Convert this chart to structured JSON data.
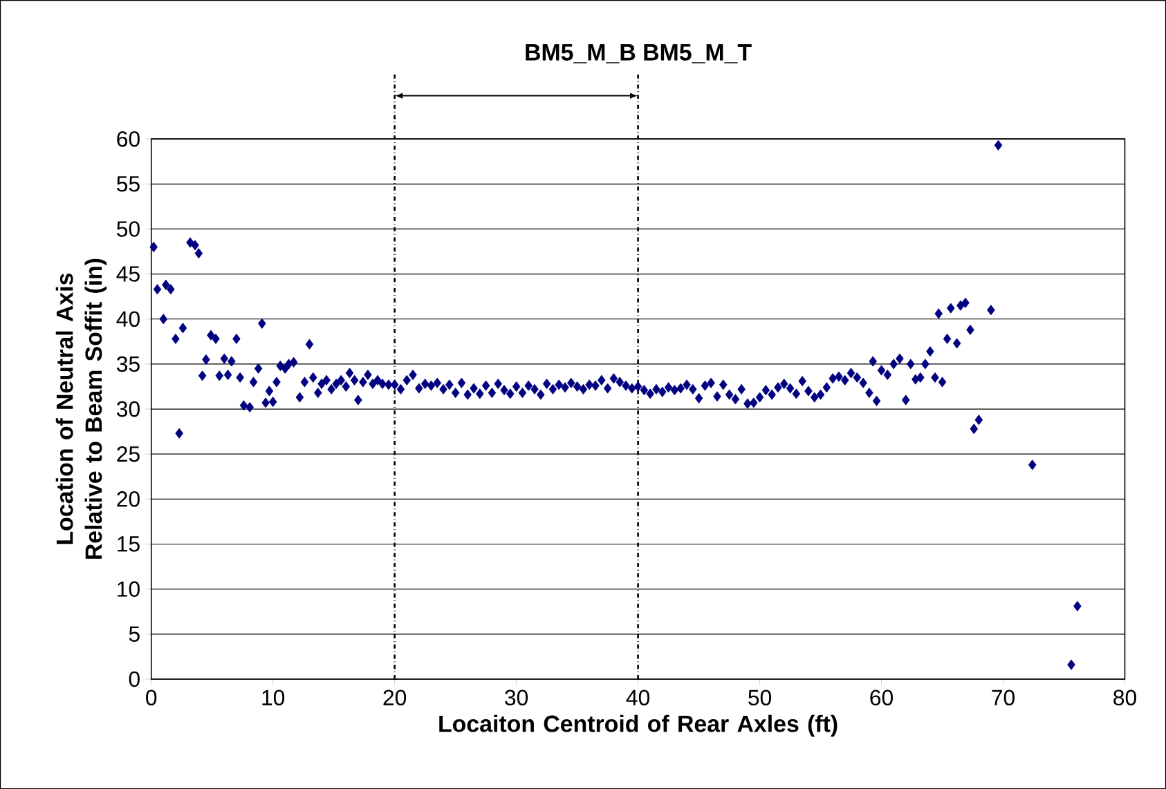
{
  "chart_data": {
    "type": "scatter",
    "title": "BM5_M_B BM5_M_T",
    "xlabel": "Locaiton Centroid of Rear Axles (ft)",
    "ylabel": "Location of Neutral Axis Relative to Beam Soffit (in)",
    "series": [
      {
        "color": "#000080",
        "x": [
          0.2,
          0.5,
          1,
          1.2,
          1.6,
          2,
          2.3,
          2.6,
          3.2,
          3.6,
          3.9,
          4.2,
          4.5,
          4.9,
          5.3,
          5.6,
          6,
          6.3,
          6.6,
          7,
          7.3,
          7.6,
          8.1,
          8.4,
          8.8,
          9.1,
          9.4,
          9.7,
          10,
          10.3,
          10.6,
          11,
          11.3,
          11.7,
          12.2,
          12.6,
          13,
          13.3,
          13.7,
          14,
          14.4,
          14.8,
          15.2,
          15.6,
          16,
          16.3,
          16.7,
          17,
          17.4,
          17.8,
          18.2,
          18.6,
          19,
          19.5,
          20,
          20.5,
          21,
          21.5,
          22,
          22.5,
          23,
          23.5,
          24,
          24.5,
          25,
          25.5,
          26,
          26.5,
          27,
          27.5,
          28,
          28.5,
          29,
          29.5,
          30,
          30.5,
          31,
          31.5,
          32,
          32.5,
          33,
          33.5,
          34,
          34.5,
          35,
          35.5,
          36,
          36.5,
          37,
          37.5,
          38,
          38.5,
          39,
          39.5,
          40,
          40.5,
          41,
          41.5,
          42,
          42.5,
          43,
          43.5,
          44,
          44.5,
          45,
          45.5,
          46,
          46.5,
          47,
          47.5,
          48,
          48.5,
          49,
          49.5,
          50,
          50.5,
          51,
          51.5,
          52,
          52.5,
          53,
          53.5,
          54,
          54.5,
          55,
          55.5,
          56,
          56.5,
          57,
          57.5,
          58,
          58.5,
          59,
          59.3,
          59.6,
          60,
          60.5,
          61,
          61.5,
          62,
          62.4,
          62.8,
          63.2,
          63.6,
          64,
          64.4,
          64.7,
          65,
          65.4,
          65.7,
          66.2,
          66.5,
          66.9,
          67.3,
          67.6,
          68,
          69,
          69.6,
          72.4,
          75.6,
          76.1
        ],
        "values": [
          48,
          43.3,
          40,
          43.8,
          43.3,
          37.8,
          27.3,
          39,
          48.5,
          48.2,
          47.3,
          33.7,
          35.5,
          38.2,
          37.8,
          33.7,
          35.6,
          33.8,
          35.3,
          37.8,
          33.5,
          30.4,
          30.2,
          33,
          34.5,
          39.5,
          30.7,
          32,
          30.8,
          33,
          34.8,
          34.5,
          35,
          35.2,
          31.3,
          33,
          37.2,
          33.5,
          31.8,
          32.8,
          33.2,
          32.2,
          32.8,
          33.2,
          32.5,
          34,
          33.2,
          31,
          33,
          33.8,
          32.8,
          33.2,
          32.8,
          32.7,
          32.7,
          32.2,
          33.2,
          33.8,
          32.3,
          32.8,
          32.6,
          32.9,
          32.2,
          32.7,
          31.8,
          32.9,
          31.6,
          32.3,
          31.7,
          32.6,
          31.8,
          32.8,
          32.1,
          31.7,
          32.5,
          31.8,
          32.6,
          32.2,
          31.6,
          32.8,
          32.2,
          32.7,
          32.4,
          32.9,
          32.5,
          32.2,
          32.7,
          32.6,
          33.2,
          32.3,
          33.4,
          33,
          32.6,
          32.3,
          32.5,
          32.1,
          31.7,
          32.2,
          31.9,
          32.4,
          32.1,
          32.3,
          32.7,
          32.2,
          31.2,
          32.6,
          32.9,
          31.4,
          32.7,
          31.6,
          31.1,
          32.2,
          30.6,
          30.7,
          31.3,
          32.1,
          31.6,
          32.4,
          32.8,
          32.3,
          31.7,
          33.1,
          32,
          31.3,
          31.6,
          32.4,
          33.4,
          33.6,
          33.2,
          34,
          33.5,
          32.9,
          31.8,
          35.3,
          30.9,
          34.3,
          33.8,
          35,
          35.6,
          31,
          35,
          33.3,
          33.5,
          35,
          36.4,
          33.5,
          40.6,
          33,
          37.8,
          41.2,
          37.3,
          41.5,
          41.8,
          38.8,
          27.8,
          28.8,
          41,
          59.3,
          23.8,
          1.6,
          8.1
        ]
      }
    ],
    "xlim": [
      0,
      80
    ],
    "xticks": [
      0,
      10,
      20,
      30,
      40,
      50,
      60,
      70,
      80
    ],
    "ylim": [
      0,
      60
    ],
    "yticks": [
      0,
      5,
      10,
      15,
      20,
      25,
      30,
      35,
      40,
      45,
      50,
      55,
      60
    ],
    "grid": "y",
    "marker": "diamond",
    "ref_lines": [
      {
        "axis": "x",
        "value": 20,
        "line_style": "dashed",
        "color": "#000000"
      },
      {
        "axis": "x",
        "value": 40,
        "line_style": "dashed",
        "color": "#000000"
      }
    ]
  }
}
